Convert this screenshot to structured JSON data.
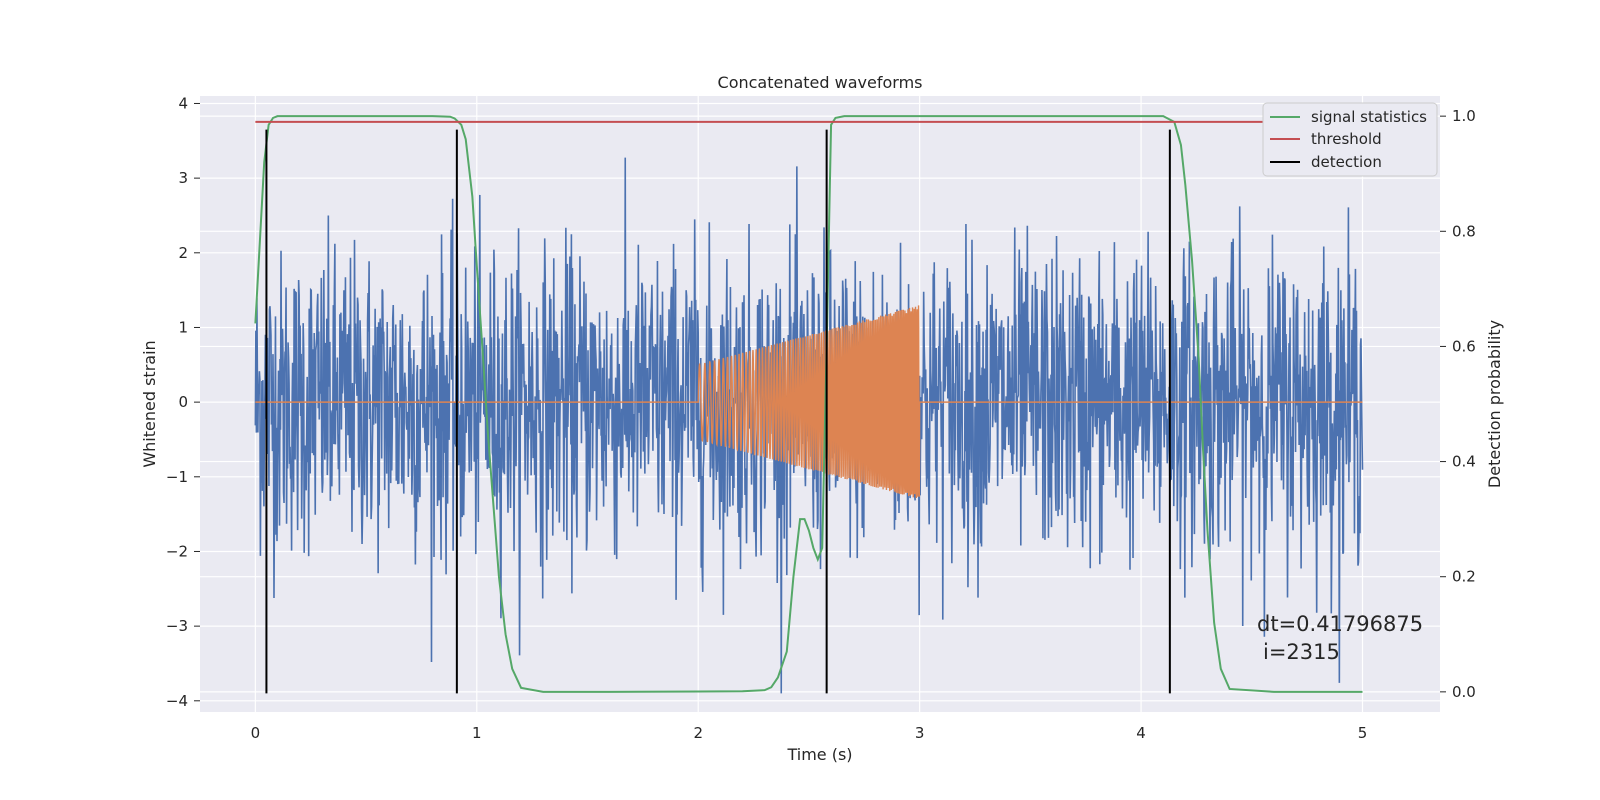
{
  "chart_data": {
    "type": "line",
    "title": "Concatenated waveforms",
    "xlabel": "Time (s)",
    "ylabel_left": "Whitened strain",
    "ylabel_right": "Detection probability",
    "xlim": [
      -0.25,
      5.35
    ],
    "ylim_left": [
      -4.15,
      4.1
    ],
    "ylim_right": [
      -0.035,
      1.035
    ],
    "xticks": [
      0,
      1,
      2,
      3,
      4,
      5
    ],
    "xtick_labels": [
      "0",
      "1",
      "2",
      "3",
      "4",
      "5"
    ],
    "yticks_left": [
      -4,
      -3,
      -2,
      -1,
      0,
      1,
      2,
      3,
      4
    ],
    "ytick_labels_left": [
      "−4",
      "−3",
      "−2",
      "−1",
      "0",
      "1",
      "2",
      "3",
      "4"
    ],
    "yticks_right": [
      0.0,
      0.2,
      0.4,
      0.6,
      0.8,
      1.0
    ],
    "ytick_labels_right": [
      "0.0",
      "0.2",
      "0.4",
      "0.6",
      "0.8",
      "1.0"
    ],
    "grid": true,
    "legend_position": "top-right",
    "noise": {
      "x_range": [
        0,
        5
      ],
      "typical_amplitude": 2.2,
      "max_value": 3.65,
      "min_value": -3.9
    },
    "chirp": {
      "x_range": [
        2.0,
        3.0
      ],
      "amplitude_start": 0.5,
      "amplitude_end": 1.3
    },
    "series": [
      {
        "name": "signal statistics",
        "axis": "right",
        "x": [
          0.0,
          0.02,
          0.04,
          0.06,
          0.08,
          0.1,
          0.2,
          0.5,
          0.8,
          0.88,
          0.9,
          0.93,
          0.95,
          0.98,
          1.0,
          1.03,
          1.05,
          1.08,
          1.1,
          1.13,
          1.16,
          1.2,
          1.3,
          1.6,
          2.0,
          2.2,
          2.3,
          2.33,
          2.36,
          2.4,
          2.43,
          2.46,
          2.48,
          2.5,
          2.52,
          2.54,
          2.56,
          2.58,
          2.6,
          2.62,
          2.66,
          2.75,
          3.0,
          3.5,
          4.0,
          4.1,
          4.15,
          4.18,
          4.2,
          4.23,
          4.26,
          4.28,
          4.3,
          4.33,
          4.36,
          4.4,
          4.6,
          5.0
        ],
        "y": [
          0.64,
          0.78,
          0.92,
          0.985,
          0.997,
          1.0,
          1.0,
          1.0,
          1.0,
          0.999,
          0.996,
          0.985,
          0.96,
          0.86,
          0.74,
          0.57,
          0.45,
          0.3,
          0.2,
          0.1,
          0.04,
          0.007,
          0.0,
          0.0,
          0.0005,
          0.001,
          0.003,
          0.008,
          0.025,
          0.07,
          0.2,
          0.3,
          0.3,
          0.28,
          0.25,
          0.23,
          0.25,
          0.6,
          0.985,
          0.997,
          1.0,
          1.0,
          1.0,
          1.0,
          1.0,
          1.0,
          0.99,
          0.95,
          0.88,
          0.75,
          0.58,
          0.42,
          0.28,
          0.12,
          0.04,
          0.005,
          0.0,
          0.0
        ],
        "color": "#55a868"
      },
      {
        "name": "threshold",
        "axis": "right",
        "x": [
          0,
          5
        ],
        "y": [
          0.99,
          0.99
        ],
        "color": "#c44e52"
      },
      {
        "name": "detection",
        "axis": "left",
        "style": "vertical-lines",
        "x": [
          0.05,
          0.91,
          2.58,
          4.13
        ],
        "y_range": [
          -3.9,
          3.65
        ],
        "color": "#000000"
      }
    ],
    "noise_color": "#4c72b0",
    "chirp_color": "#dd8452",
    "annotations": [
      "dt=0.41796875",
      "i=2315"
    ]
  }
}
